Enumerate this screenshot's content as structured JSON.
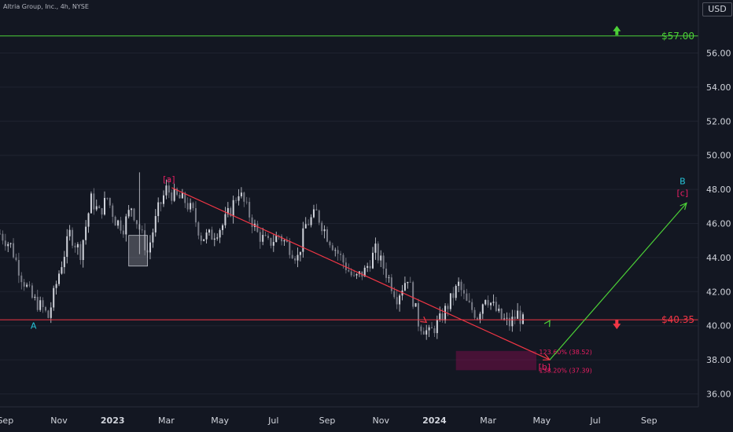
{
  "header": {
    "symbol_line": "Altria Group, Inc., 4h, NYSE",
    "currency": "USD"
  },
  "chart_data": {
    "type": "candlestick",
    "title": "Altria Group, Inc., 4h, NYSE",
    "ylim": [
      35,
      58.4
    ],
    "y_ticks": [
      "36.00",
      "38.00",
      "40.00",
      "42.00",
      "44.00",
      "46.00",
      "48.00",
      "50.00",
      "52.00",
      "54.00",
      "56.00"
    ],
    "x_ticks": [
      "Sep",
      "Nov",
      "2023",
      "Mar",
      "May",
      "Jul",
      "Sep",
      "Nov",
      "2024",
      "Mar",
      "May",
      "Jul",
      "Sep"
    ],
    "price_path": [
      [
        0,
        45.4
      ],
      [
        0.4,
        44.7
      ],
      [
        0.8,
        42.9
      ],
      [
        1.2,
        41.6
      ],
      [
        1.6,
        41.0
      ],
      [
        1.8,
        40.5
      ],
      [
        2.2,
        43.1
      ],
      [
        2.6,
        45.4
      ],
      [
        3.0,
        44.3
      ],
      [
        3.4,
        47.4
      ],
      [
        3.7,
        46.6
      ],
      [
        4.0,
        47.5
      ],
      [
        4.3,
        46.2
      ],
      [
        4.6,
        45.8
      ],
      [
        4.9,
        47.0
      ],
      [
        5.2,
        45.7
      ],
      [
        5.5,
        44.3
      ],
      [
        5.9,
        46.8
      ],
      [
        6.2,
        48.0
      ],
      [
        6.5,
        47.6
      ],
      [
        6.9,
        47.3
      ],
      [
        7.2,
        46.6
      ],
      [
        7.5,
        45.2
      ],
      [
        7.9,
        45.3
      ],
      [
        8.3,
        45.9
      ],
      [
        8.6,
        46.8
      ],
      [
        8.9,
        47.9
      ],
      [
        9.3,
        46.5
      ],
      [
        9.6,
        45.4
      ],
      [
        10.0,
        44.8
      ],
      [
        10.4,
        45.3
      ],
      [
        10.8,
        44.6
      ],
      [
        11.1,
        44.0
      ],
      [
        11.4,
        45.9
      ],
      [
        11.8,
        46.6
      ],
      [
        12.2,
        45.3
      ],
      [
        12.7,
        44.0
      ],
      [
        13.2,
        42.7
      ],
      [
        13.6,
        43.2
      ],
      [
        14.0,
        44.4
      ],
      [
        14.4,
        43.1
      ],
      [
        14.8,
        41.7
      ],
      [
        15.2,
        42.9
      ],
      [
        15.6,
        40.2
      ],
      [
        16.0,
        39.5
      ],
      [
        16.4,
        40.3
      ],
      [
        16.8,
        41.5
      ],
      [
        17.1,
        42.4
      ],
      [
        17.4,
        41.3
      ],
      [
        17.8,
        40.6
      ],
      [
        18.1,
        41.8
      ],
      [
        18.4,
        41.1
      ],
      [
        18.7,
        40.4
      ],
      [
        19.0,
        40.1
      ],
      [
        19.3,
        40.7
      ],
      [
        19.6,
        40.0
      ]
    ],
    "price_hi_lo": {
      "high": 49.0,
      "low": 39.1
    },
    "levels": [
      {
        "price": 57.0,
        "label": "$57.00",
        "color": "#4cd137",
        "arrow": "up"
      },
      {
        "price": 40.35,
        "label": "$40.35",
        "color": "#f23645",
        "arrow": "down"
      }
    ],
    "last_price": "40.35",
    "wave_labels": [
      {
        "text": "A",
        "color": "#26c6da",
        "x": 1.25,
        "price": 40.0
      },
      {
        "text": "[a]",
        "color": "#e91e63",
        "x": 6.3,
        "price": 48.6
      },
      {
        "text": "[b]",
        "color": "#e91e63",
        "x": 20.3,
        "price": 37.6
      },
      {
        "text": "B",
        "color": "#26c6da",
        "x": 25.45,
        "price": 48.5
      },
      {
        "text": "[c]",
        "color": "#e91e63",
        "x": 25.45,
        "price": 47.8
      }
    ],
    "projections": [
      {
        "from": [
          6.4,
          48.1
        ],
        "to": [
          20.5,
          38.0
        ],
        "color": "#f23645"
      },
      {
        "from": [
          20.5,
          38.0
        ],
        "to": [
          25.6,
          47.2
        ],
        "color": "#4cd137"
      }
    ],
    "target_zone": {
      "from_price": 37.39,
      "to_price": 38.52,
      "labels": [
        "123.60% (38.52)",
        "138.20% (37.39)"
      ]
    }
  }
}
